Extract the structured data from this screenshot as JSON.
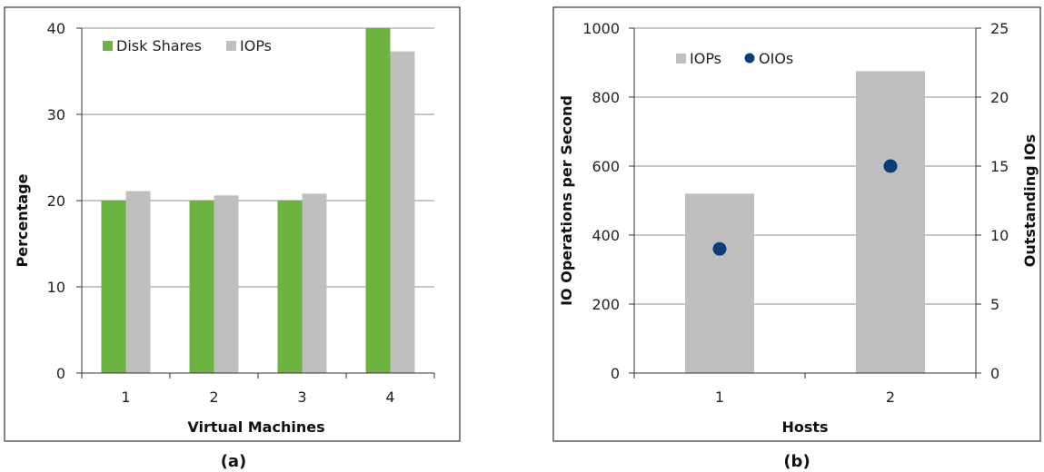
{
  "chart_data": [
    {
      "type": "bar",
      "caption": "(a)",
      "categories": [
        "1",
        "2",
        "3",
        "4"
      ],
      "series": [
        {
          "name": "Disk Shares",
          "values": [
            20,
            20,
            20,
            40
          ],
          "color": "#6db33f"
        },
        {
          "name": "IOPs",
          "values": [
            21.1,
            20.6,
            20.8,
            37.3
          ],
          "color": "#bfbfbf"
        }
      ],
      "xlabel": "Virtual Machines",
      "ylabel": "Percentage",
      "ylim": [
        0,
        40
      ],
      "yticks": [
        "0",
        "10",
        "20",
        "30",
        "40"
      ],
      "grid": true,
      "legend": "top-left"
    },
    {
      "type": "bar",
      "caption": "(b)",
      "categories": [
        "1",
        "2"
      ],
      "series": [
        {
          "name": "IOPs",
          "values": [
            520,
            875
          ],
          "color": "#bfbfbf",
          "axis": "left",
          "kind": "bar"
        },
        {
          "name": "OIOs",
          "values": [
            9,
            15
          ],
          "color": "#0b3d7a",
          "axis": "right",
          "kind": "scatter"
        }
      ],
      "xlabel": "Hosts",
      "ylabel": "IO Operations per Second",
      "y2label": "Outstanding IOs",
      "ylim": [
        0,
        1000
      ],
      "y2lim": [
        0,
        25
      ],
      "yticks": [
        "0",
        "200",
        "400",
        "600",
        "800",
        "1000"
      ],
      "y2ticks": [
        "0",
        "5",
        "10",
        "15",
        "20",
        "25"
      ],
      "grid": true,
      "legend": "top-left"
    }
  ]
}
